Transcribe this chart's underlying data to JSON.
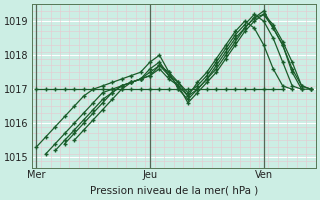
{
  "background_color": "#cceee4",
  "plot_bg_color": "#cceee4",
  "grid_color_major_h": "#ffffff",
  "grid_color_major_v": "#aaaaaa",
  "grid_color_minor_h": "#e8c8d0",
  "grid_color_minor_v": "#e8c8d0",
  "line_color": "#1a5c2a",
  "marker_color": "#1a5c2a",
  "xlabel": "Pression niveau de la mer( hPa )",
  "ylim": [
    1014.7,
    1019.5
  ],
  "yticks": [
    1015,
    1016,
    1017,
    1018,
    1019
  ],
  "xtick_labels": [
    "Mer",
    "Jeu",
    "Ven"
  ],
  "xtick_positions": [
    0,
    12,
    24
  ],
  "vline_positions": [
    0,
    12,
    24
  ],
  "total_points": 30,
  "series": [
    {
      "start": 0,
      "data": [
        1015.3,
        1015.6,
        1015.9,
        1016.2,
        1016.5,
        1016.8,
        1017.0,
        1017.1,
        1017.2,
        1017.3,
        1017.4,
        1017.5,
        1017.8,
        1018.0,
        1017.5,
        1017.0,
        1016.7,
        1017.0,
        1017.3,
        1017.7,
        1018.1,
        1018.5,
        1018.8,
        1019.1,
        1019.2,
        1018.8,
        1018.3,
        1017.5,
        1017.0,
        1017.0
      ]
    },
    {
      "start": 1,
      "data": [
        1015.1,
        1015.4,
        1015.7,
        1016.0,
        1016.3,
        1016.6,
        1016.9,
        1017.0,
        1017.1,
        1017.2,
        1017.3,
        1017.6,
        1017.8,
        1017.4,
        1017.1,
        1016.6,
        1016.9,
        1017.2,
        1017.5,
        1017.9,
        1018.3,
        1018.7,
        1019.0,
        1019.2,
        1018.9,
        1018.4,
        1017.8,
        1017.1,
        1017.0
      ]
    },
    {
      "start": 2,
      "data": [
        1015.2,
        1015.5,
        1015.8,
        1016.1,
        1016.4,
        1016.7,
        1016.9,
        1017.1,
        1017.2,
        1017.3,
        1017.4,
        1017.7,
        1017.5,
        1017.2,
        1016.8,
        1017.0,
        1017.3,
        1017.6,
        1018.0,
        1018.4,
        1018.8,
        1019.1,
        1019.3,
        1018.8,
        1018.3,
        1017.6,
        1017.1,
        1017.0
      ]
    },
    {
      "start": 3,
      "data": [
        1015.4,
        1015.7,
        1016.0,
        1016.3,
        1016.6,
        1016.9,
        1017.1,
        1017.2,
        1017.3,
        1017.5,
        1017.7,
        1017.4,
        1017.2,
        1016.9,
        1017.1,
        1017.4,
        1017.8,
        1018.2,
        1018.6,
        1018.9,
        1019.2,
        1019.0,
        1018.5,
        1017.8,
        1017.1,
        1017.0
      ]
    },
    {
      "start": 4,
      "data": [
        1015.5,
        1015.8,
        1016.1,
        1016.4,
        1016.7,
        1017.0,
        1017.2,
        1017.3,
        1017.4,
        1017.6,
        1017.3,
        1017.1,
        1016.8,
        1017.2,
        1017.5,
        1017.9,
        1018.3,
        1018.7,
        1019.0,
        1018.8,
        1018.3,
        1017.6,
        1017.1,
        1017.0
      ]
    },
    {
      "start": 0,
      "data": [
        1017.0,
        1017.0,
        1017.0,
        1017.0,
        1017.0,
        1017.0,
        1017.0,
        1017.0,
        1017.0,
        1017.0,
        1017.0,
        1017.0,
        1017.0,
        1017.0,
        1017.0,
        1017.0,
        1017.0,
        1017.0,
        1017.0,
        1017.0,
        1017.0,
        1017.0,
        1017.0,
        1017.0,
        1017.0,
        1017.0,
        1017.0
      ]
    }
  ]
}
